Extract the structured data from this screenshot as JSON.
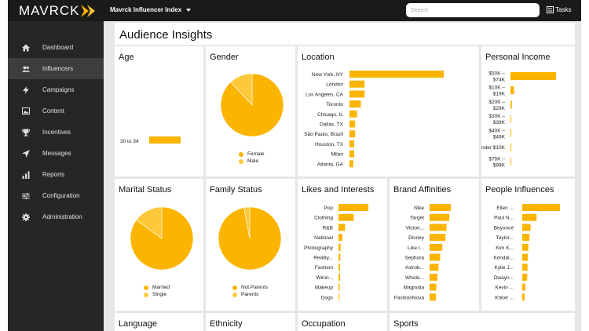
{
  "topbar": {
    "logo_text": "MAVRCK",
    "index_label": "Mavrck Influencer Index",
    "search_placeholder": "Search",
    "tasks_label": "Tasks"
  },
  "sidebar": {
    "items": [
      {
        "label": "Dashboard",
        "icon": "home-icon"
      },
      {
        "label": "Influencers",
        "icon": "users-icon",
        "active": true
      },
      {
        "label": "Campaigns",
        "icon": "bolt-icon"
      },
      {
        "label": "Content",
        "icon": "image-icon"
      },
      {
        "label": "Incentives",
        "icon": "trophy-icon"
      },
      {
        "label": "Messages",
        "icon": "send-icon"
      },
      {
        "label": "Reports",
        "icon": "bar-chart-icon"
      },
      {
        "label": "Configuration",
        "icon": "sliders-icon"
      },
      {
        "label": "Administration",
        "icon": "gear-icon"
      }
    ]
  },
  "page_title": "Audience Insights",
  "colors": {
    "primary": "#fbb400",
    "secondary": "#fdc93a"
  },
  "cards": {
    "age": {
      "title": "Age"
    },
    "gender": {
      "title": "Gender"
    },
    "location": {
      "title": "Location"
    },
    "income": {
      "title": "Personal Income"
    },
    "marital": {
      "title": "Marital Status"
    },
    "family": {
      "title": "Family Status"
    },
    "likes": {
      "title": "Likes and Interests"
    },
    "brands": {
      "title": "Brand Affinities"
    },
    "people": {
      "title": "People Influences"
    },
    "language": {
      "title": "Language"
    },
    "ethnicity": {
      "title": "Ethnicity"
    },
    "occupation": {
      "title": "Occupation"
    },
    "sports": {
      "title": "Sports"
    }
  },
  "chart_data": [
    {
      "id": "age",
      "type": "bar",
      "categories": [
        "30 to 34"
      ],
      "values": [
        100
      ]
    },
    {
      "id": "gender",
      "type": "pie",
      "categories": [
        "Female",
        "Male"
      ],
      "values": [
        88,
        12
      ]
    },
    {
      "id": "location",
      "type": "bar",
      "categories": [
        "New York, NY",
        "London",
        "Los Angeles, CA",
        "Toronto",
        "Chicago, IL",
        "Dallas, TX",
        "São Paulo, Brazil",
        "Houston, TX",
        "Milan",
        "Atlanta, GA"
      ],
      "values": [
        100,
        16,
        16,
        12,
        8,
        6,
        6,
        5,
        5,
        4
      ]
    },
    {
      "id": "income",
      "type": "bar",
      "categories": [
        "$50K – $74K",
        "$10K – $19K",
        "$20K – $29K",
        "$30K – $39K",
        "$40K – $49K",
        "Under $10K",
        "$75K – $99K"
      ],
      "values": [
        100,
        8,
        3,
        1,
        1,
        1,
        1
      ]
    },
    {
      "id": "marital",
      "type": "pie",
      "categories": [
        "Married",
        "Single"
      ],
      "values": [
        85,
        15
      ]
    },
    {
      "id": "family",
      "type": "pie",
      "categories": [
        "Not Parents",
        "Parents"
      ],
      "values": [
        97,
        3
      ]
    },
    {
      "id": "likes",
      "type": "bar",
      "categories": [
        "Pop",
        "Clothing",
        "R&B",
        "National",
        "Photography",
        "Reality...",
        "Fashion",
        "Winin...",
        "Makeup",
        "Dogs"
      ],
      "values": [
        100,
        51,
        22,
        13,
        7,
        6,
        5,
        5,
        4,
        3
      ]
    },
    {
      "id": "brands",
      "type": "bar",
      "categories": [
        "Nike",
        "Target",
        "Victori...",
        "Disney",
        "Like t...",
        "Sephora",
        "Astrob...",
        "Whole...",
        "Magnolia",
        "FashionNova"
      ],
      "values": [
        100,
        93,
        80,
        75,
        60,
        50,
        42,
        37,
        32,
        30
      ]
    },
    {
      "id": "people",
      "type": "bar",
      "categories": [
        "Ellen ...",
        "Paul N...",
        "Beyoncé",
        "Taylor...",
        "Kim K...",
        "Kendal...",
        "Kylie J...",
        "Dwayn...",
        "Kevin ...",
        "Khloé ..."
      ],
      "values": [
        100,
        38,
        22,
        19,
        16,
        15,
        14,
        13,
        8,
        6
      ]
    }
  ]
}
